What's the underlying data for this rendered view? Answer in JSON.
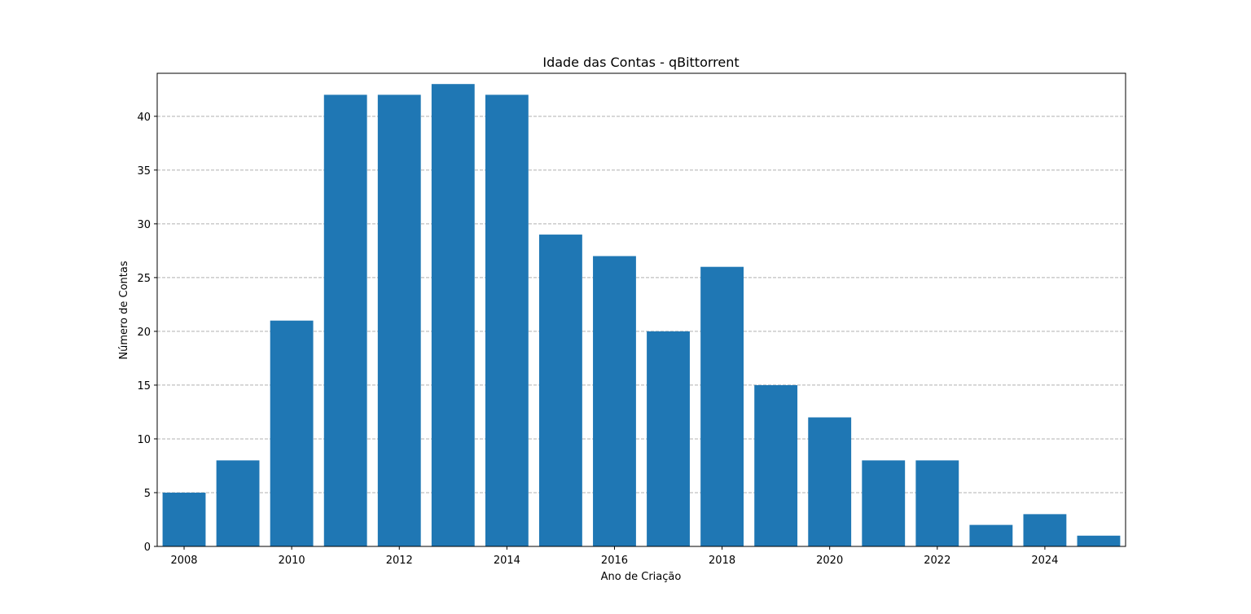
{
  "chart_data": {
    "type": "bar",
    "title": "Idade das Contas - qBittorrent",
    "xlabel": "Ano de Criação",
    "ylabel": "Número de Contas",
    "categories": [
      2008,
      2009,
      2010,
      2011,
      2012,
      2013,
      2014,
      2015,
      2016,
      2017,
      2018,
      2019,
      2020,
      2021,
      2022,
      2023,
      2024,
      2025
    ],
    "values": [
      5,
      8,
      21,
      42,
      42,
      43,
      42,
      29,
      27,
      20,
      26,
      15,
      12,
      8,
      8,
      2,
      3,
      1
    ],
    "xticks": [
      2008,
      2010,
      2012,
      2014,
      2016,
      2018,
      2020,
      2022,
      2024
    ],
    "yticks": [
      0,
      5,
      10,
      15,
      20,
      25,
      30,
      35,
      40
    ],
    "ylim": [
      0,
      44
    ],
    "grid": "y-dashed",
    "bar_color": "#1f77b4",
    "grid_color": "#b0b0b0"
  }
}
